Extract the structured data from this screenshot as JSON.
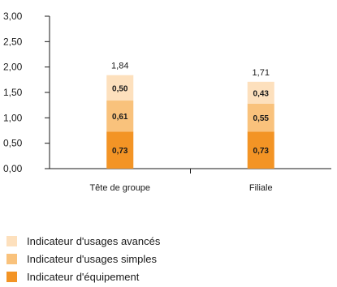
{
  "chart_data": {
    "type": "bar",
    "stacked": true,
    "categories": [
      "Tête de groupe",
      "Filiale"
    ],
    "series": [
      {
        "name": "Indicateur d'équipement",
        "values": [
          "0,73",
          "0,73"
        ],
        "numeric": [
          0.73,
          0.73
        ],
        "color": "#f39425"
      },
      {
        "name": "Indicateur d'usages simples",
        "values": [
          "0,61",
          "0,55"
        ],
        "numeric": [
          0.61,
          0.55
        ],
        "color": "#f9c27c"
      },
      {
        "name": "Indicateur d'usages avancés",
        "values": [
          "0,50",
          "0,43"
        ],
        "numeric": [
          0.5,
          0.43
        ],
        "color": "#fde0bd"
      }
    ],
    "totals": [
      "1,84",
      "1,71"
    ],
    "y_ticks": [
      "0,00",
      "0,50",
      "1,00",
      "1,50",
      "2,00",
      "2,50",
      "3,00"
    ],
    "ylim": [
      0,
      3
    ],
    "legend_position": "bottom-left",
    "grid": false
  },
  "legend": [
    {
      "label": "Indicateur d'usages avancés",
      "color": "#fde0bd"
    },
    {
      "label": "Indicateur d'usages simples",
      "color": "#f9c27c"
    },
    {
      "label": "Indicateur d'équipement",
      "color": "#f39425"
    }
  ]
}
